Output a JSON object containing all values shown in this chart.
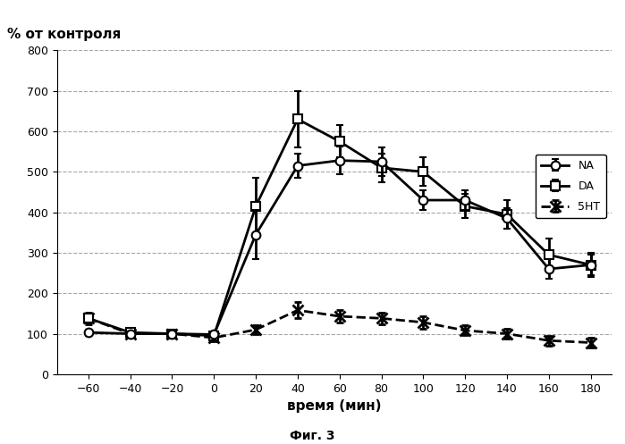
{
  "title_ylabel": "% от контроля",
  "xlabel": "время (мин)",
  "fig_caption": "Фиг. 3",
  "xlim": [
    -75,
    190
  ],
  "ylim": [
    0,
    800
  ],
  "xticks": [
    -60,
    -40,
    -20,
    0,
    20,
    40,
    60,
    80,
    100,
    120,
    140,
    160,
    180
  ],
  "yticks": [
    0,
    100,
    200,
    300,
    400,
    500,
    600,
    700,
    800
  ],
  "NA_x": [
    -60,
    -40,
    -20,
    0,
    20,
    40,
    60,
    80,
    100,
    120,
    140,
    160,
    180
  ],
  "NA_y": [
    103,
    100,
    100,
    98,
    345,
    515,
    528,
    525,
    430,
    430,
    385,
    260,
    270
  ],
  "NA_yerr": [
    8,
    5,
    5,
    5,
    60,
    30,
    35,
    35,
    25,
    25,
    25,
    25,
    25
  ],
  "DA_x": [
    -60,
    -40,
    -20,
    0,
    20,
    40,
    60,
    80,
    100,
    120,
    140,
    160,
    180
  ],
  "DA_y": [
    138,
    103,
    100,
    95,
    415,
    630,
    575,
    510,
    500,
    415,
    395,
    295,
    270
  ],
  "DA_yerr": [
    12,
    8,
    5,
    5,
    70,
    70,
    40,
    35,
    35,
    30,
    35,
    40,
    30
  ],
  "HT5_x": [
    -60,
    -40,
    -20,
    0,
    20,
    40,
    60,
    80,
    100,
    120,
    140,
    160,
    180
  ],
  "HT5_y": [
    138,
    100,
    100,
    90,
    110,
    158,
    143,
    138,
    128,
    108,
    100,
    83,
    78
  ],
  "HT5_yerr": [
    15,
    8,
    8,
    8,
    12,
    20,
    15,
    15,
    15,
    12,
    12,
    12,
    12
  ],
  "legend_labels": [
    "NA",
    "DA",
    "5HT"
  ],
  "background_color": "white"
}
